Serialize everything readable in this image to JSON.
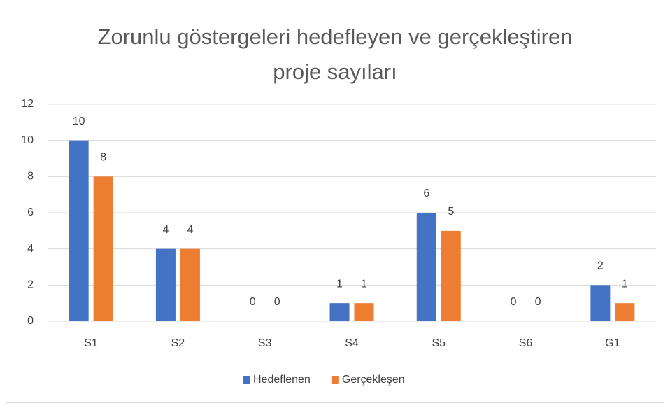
{
  "chart_data": {
    "type": "bar",
    "title": "Zorunlu göstergeleri hedefleyen ve gerçekleştiren proje sayıları",
    "categories": [
      "S1",
      "S2",
      "S3",
      "S4",
      "S5",
      "S6",
      "G1"
    ],
    "series": [
      {
        "name": "Hedeflenen",
        "color": "#4472c4",
        "values": [
          10,
          4,
          0,
          1,
          6,
          0,
          2
        ]
      },
      {
        "name": "Gerçekleşen",
        "color": "#ed7d31",
        "values": [
          8,
          4,
          0,
          1,
          5,
          0,
          1
        ]
      }
    ],
    "ylim": [
      0,
      12
    ],
    "yticks": [
      0,
      2,
      4,
      6,
      8,
      10,
      12
    ],
    "grid": true,
    "legend": "bottom"
  }
}
